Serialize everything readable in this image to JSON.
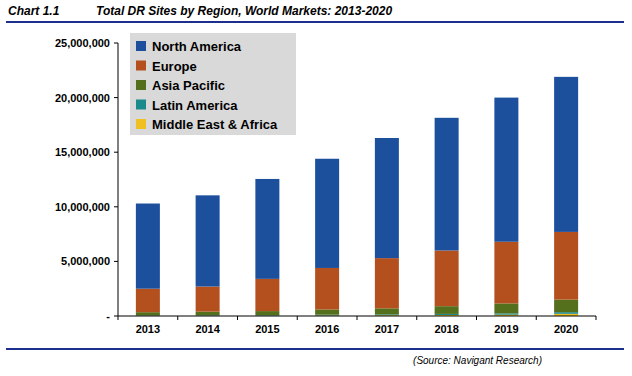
{
  "chart_data": {
    "type": "bar",
    "title": "Total DR Sites by Region, World Markets: 2013-2020",
    "annotations": [
      "Chart 1.1",
      "(Source: Navigant Research)"
    ],
    "categories": [
      "2013",
      "2014",
      "2015",
      "2016",
      "2017",
      "2018",
      "2019",
      "2020"
    ],
    "series": [
      {
        "name": "North America",
        "color": "#1c4f9c",
        "values": [
          7800000,
          8350000,
          9150000,
          10000000,
          11000000,
          12150000,
          13200000,
          14200000
        ]
      },
      {
        "name": "Europe",
        "color": "#b4501e",
        "values": [
          2150000,
          2300000,
          2950000,
          3800000,
          4600000,
          5100000,
          5650000,
          6200000
        ]
      },
      {
        "name": "Asia Pacific",
        "color": "#55701c",
        "values": [
          300000,
          330000,
          360000,
          480000,
          550000,
          710000,
          910000,
          1150000
        ]
      },
      {
        "name": "Latin America",
        "color": "#1b8a8c",
        "values": [
          30000,
          40000,
          50000,
          70000,
          80000,
          100000,
          120000,
          150000
        ]
      },
      {
        "name": "Middle East & Africa",
        "color": "#f0c020",
        "values": [
          20000,
          30000,
          40000,
          50000,
          70000,
          90000,
          120000,
          200000
        ]
      }
    ],
    "stacked": true,
    "grid": false,
    "legend": "upper left",
    "ylim": [
      0,
      25000000
    ],
    "yticks": [
      {
        "value": 0,
        "label": "-"
      },
      {
        "value": 5000000,
        "label": "5,000,000"
      },
      {
        "value": 10000000,
        "label": "10,000,000"
      },
      {
        "value": 15000000,
        "label": "15,000,000"
      },
      {
        "value": 20000000,
        "label": "20,000,000"
      },
      {
        "value": 25000000,
        "label": "25,000,000"
      }
    ]
  }
}
